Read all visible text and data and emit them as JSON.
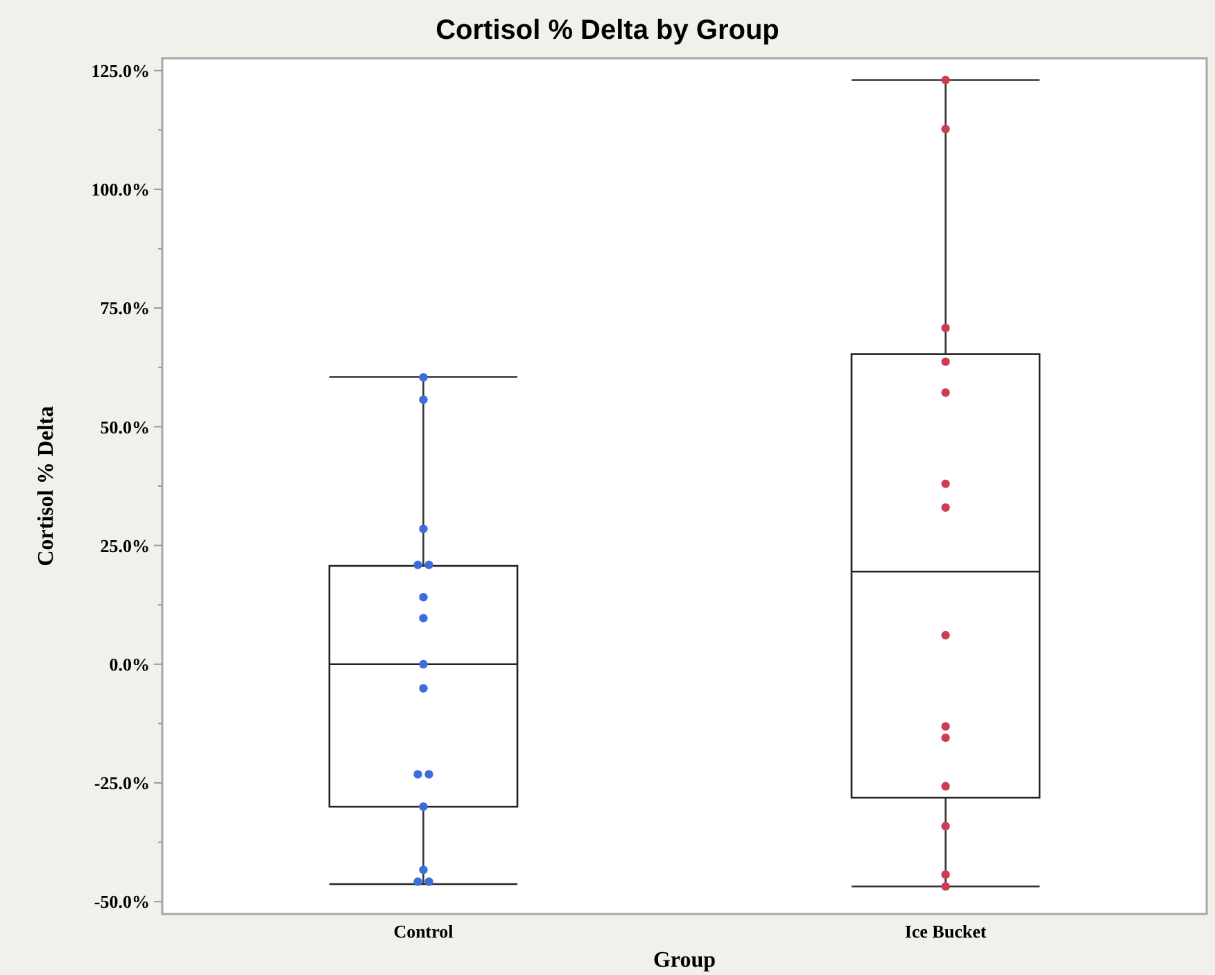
{
  "chart_data": {
    "type": "box",
    "title": "Cortisol % Delta by Group",
    "xlabel": "Group",
    "ylabel": "Cortisol % Delta",
    "categories": [
      "Control",
      "Ice Bucket"
    ],
    "boxes": [
      {
        "low": -46.3,
        "q1": -30.0,
        "median": 0.0,
        "q3": 20.7,
        "high": 60.5
      },
      {
        "low": -46.8,
        "q1": -28.1,
        "median": 19.5,
        "q3": 65.3,
        "high": 123.0
      }
    ],
    "series": [
      {
        "type": "scatter",
        "color": "#3b6fd8",
        "x": [
          "Control",
          "Control",
          "Control",
          "Control",
          "Control",
          "Control",
          "Control",
          "Control",
          "Control",
          "Control",
          "Control",
          "Control",
          "Control",
          "Control",
          "Control"
        ],
        "values": [
          60.4,
          55.7,
          28.5,
          20.9,
          20.9,
          14.1,
          9.7,
          0,
          -5.1,
          -23.2,
          -23.2,
          -30.0,
          -43.3,
          -45.8,
          -45.8
        ]
      },
      {
        "type": "scatter",
        "color": "#cc3d50",
        "x": [
          "Ice Bucket",
          "Ice Bucket",
          "Ice Bucket",
          "Ice Bucket",
          "Ice Bucket",
          "Ice Bucket",
          "Ice Bucket",
          "Ice Bucket",
          "Ice Bucket",
          "Ice Bucket",
          "Ice Bucket",
          "Ice Bucket",
          "Ice Bucket",
          "Ice Bucket"
        ],
        "values": [
          123.0,
          112.7,
          70.8,
          63.7,
          57.2,
          38.0,
          33.0,
          6.1,
          -13.1,
          -15.5,
          -25.7,
          -34.1,
          -44.3,
          -46.8
        ]
      }
    ],
    "ylim": [
      -52.6,
      127.6
    ],
    "yticks": [
      {
        "value": -50,
        "label": "-50.0%"
      },
      {
        "value": -37.5,
        "label": null
      },
      {
        "value": -25,
        "label": "-25.0%"
      },
      {
        "value": -12.5,
        "label": null
      },
      {
        "value": 0,
        "label": "0.0%"
      },
      {
        "value": 12.5,
        "label": null
      },
      {
        "value": 25,
        "label": "25.0%"
      },
      {
        "value": 37.5,
        "label": null
      },
      {
        "value": 50,
        "label": "50.0%"
      },
      {
        "value": 62.5,
        "label": null
      },
      {
        "value": 75,
        "label": "75.0%"
      },
      {
        "value": 87.5,
        "label": null
      },
      {
        "value": 100,
        "label": "100.0%"
      },
      {
        "value": 112.5,
        "label": null
      },
      {
        "value": 125,
        "label": "125.0%"
      }
    ],
    "marker": "circle",
    "grid": false
  }
}
